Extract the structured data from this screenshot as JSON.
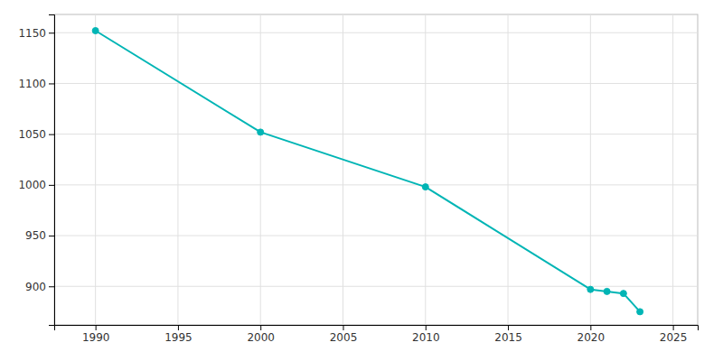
{
  "chart_data": {
    "type": "line",
    "x": [
      1990,
      2000,
      2010,
      2020,
      2021,
      2022,
      2023
    ],
    "values": [
      1152,
      1052,
      998,
      897,
      895,
      893,
      875
    ],
    "color": "#00b5b5",
    "marker": "circle",
    "xlim": [
      1987.5,
      2026.5
    ],
    "ylim": [
      862,
      1168
    ],
    "xticks": [
      1990,
      1995,
      2000,
      2005,
      2010,
      2015,
      2020,
      2025
    ],
    "yticks": [
      900,
      950,
      1000,
      1050,
      1100,
      1150
    ],
    "grid": true
  }
}
